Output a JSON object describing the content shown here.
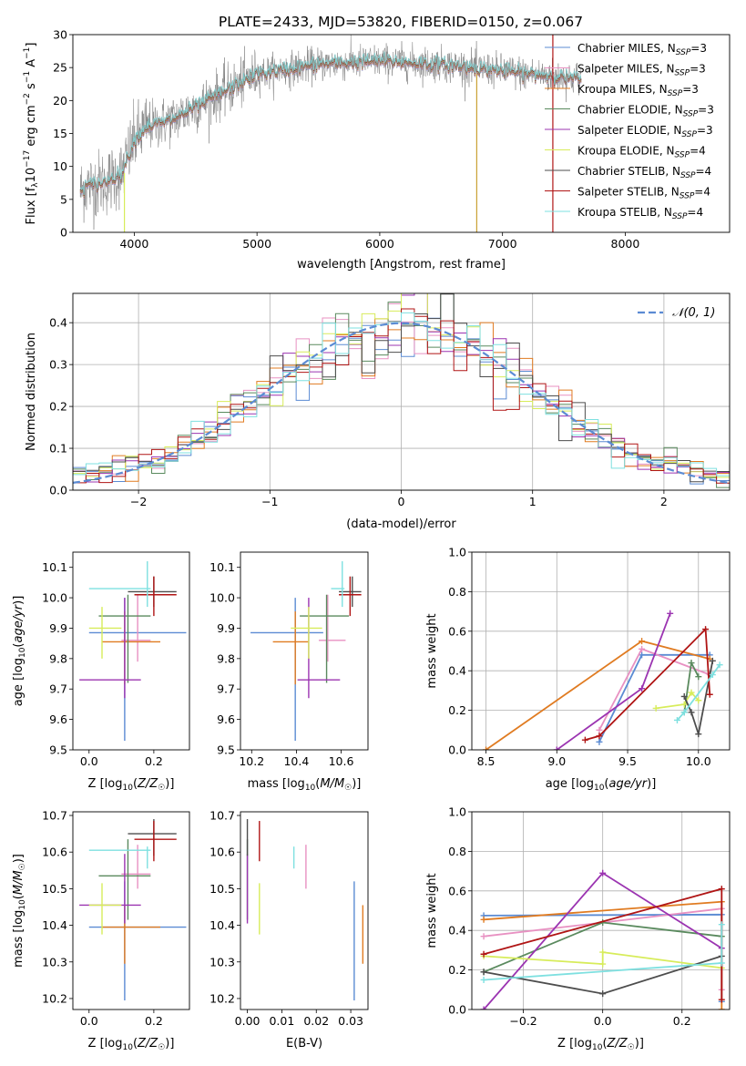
{
  "figure": {
    "title": "PLATE=2433, MJD=53820, FIBERID=0150, z=0.067"
  },
  "chart_data": [
    {
      "id": "spectrum",
      "type": "line",
      "xlabel": "wavelength [Angstrom, rest frame]",
      "ylabel": "Flux [f_λ10^-17 erg cm^-2 s^-1 A^-1]",
      "xlim": [
        3500,
        8850
      ],
      "ylim": [
        0,
        30
      ],
      "xticks": [
        4000,
        5000,
        6000,
        7000,
        8000
      ],
      "yticks": [
        0,
        5,
        10,
        15,
        20,
        25,
        30
      ],
      "grid": false,
      "legend_position": "right",
      "data_color": "#808080",
      "continuum_knots_x": [
        3500,
        3600,
        3750,
        3900,
        4000,
        4100,
        4300,
        4600,
        5000,
        5500,
        6000,
        6500,
        7000,
        7500,
        8000,
        8500,
        8850
      ],
      "continuum_knots_y": [
        5,
        7,
        7.5,
        9,
        14,
        16,
        17,
        20,
        24,
        25.5,
        26,
        25.5,
        24.5,
        23.5,
        22.5,
        22,
        21.5
      ],
      "drop_lines_x": [
        3920,
        6790,
        7410
      ],
      "series": [
        {
          "name": "Chabrier MILES, N_SSP=3",
          "color": "#5b8bd3"
        },
        {
          "name": "Salpeter MILES, N_SSP=3",
          "color": "#e891c2"
        },
        {
          "name": "Kroupa MILES, N_SSP=3",
          "color": "#e07b21"
        },
        {
          "name": "Chabrier ELODIE, N_SSP=3",
          "color": "#5a8a5e"
        },
        {
          "name": "Salpeter ELODIE, N_SSP=3",
          "color": "#9b34b1"
        },
        {
          "name": "Kroupa ELODIE, N_SSP=4",
          "color": "#d7ec5a"
        },
        {
          "name": "Chabrier STELIB, N_SSP=4",
          "color": "#4d4d4d"
        },
        {
          "name": "Salpeter STELIB, N_SSP=4",
          "color": "#b01515"
        },
        {
          "name": "Kroupa STELIB, N_SSP=4",
          "color": "#7ee0e0"
        }
      ]
    },
    {
      "id": "residuals",
      "type": "histogram",
      "xlabel": "(data-model)/error",
      "ylabel": "Normed distribution",
      "xlim": [
        -2.5,
        2.5
      ],
      "ylim": [
        0,
        0.47
      ],
      "xticks": [
        -2,
        -1,
        0,
        1,
        2
      ],
      "yticks": [
        0.0,
        0.1,
        0.2,
        0.3,
        0.4
      ],
      "grid": true,
      "legend_position": "upper right",
      "bin_width": 0.1,
      "reference_curve": {
        "name": "𝒩(0, 1)",
        "color": "#5b8bd3",
        "style": "dashed"
      }
    },
    {
      "id": "age_vs_Z",
      "type": "errorbar",
      "xlabel": "Z [log10(Z/Z☉)]",
      "ylabel": "age [log10(age/yr)]",
      "xlim": [
        -0.05,
        0.31
      ],
      "ylim": [
        9.5,
        10.15
      ],
      "xticks": [
        0.0,
        0.2
      ],
      "yticks": [
        9.5,
        9.6,
        9.7,
        9.8,
        9.9,
        10.0,
        10.1
      ],
      "points": [
        {
          "x": 0.11,
          "y": 9.885,
          "xerr": [
            0.11,
            0.19
          ],
          "yerr": [
            0.355,
            0.115
          ],
          "color": "#5b8bd3"
        },
        {
          "x": 0.15,
          "y": 9.86,
          "xerr": [
            0.05,
            0.04
          ],
          "yerr": [
            0.07,
            0.15
          ],
          "color": "#e891c2"
        },
        {
          "x": 0.11,
          "y": 9.855,
          "xerr": [
            0.07,
            0.11
          ],
          "yerr": [
            0.14,
            0.1
          ],
          "color": "#e07b21"
        },
        {
          "x": 0.12,
          "y": 9.94,
          "xerr": [
            0.09,
            0.07
          ],
          "yerr": [
            0.22,
            0.07
          ],
          "color": "#5a8a5e"
        },
        {
          "x": 0.11,
          "y": 9.73,
          "xerr": [
            0.14,
            0.05
          ],
          "yerr": [
            0.06,
            0.27
          ],
          "color": "#9b34b1"
        },
        {
          "x": 0.04,
          "y": 9.9,
          "xerr": [
            0.04,
            0.06
          ],
          "yerr": [
            0.1,
            0.07
          ],
          "color": "#d7ec5a"
        },
        {
          "x": 0.2,
          "y": 10.02,
          "xerr": [
            0.08,
            0.07
          ],
          "yerr": [
            0.05,
            0.05
          ],
          "color": "#4d4d4d"
        },
        {
          "x": 0.2,
          "y": 10.01,
          "xerr": [
            0.06,
            0.07
          ],
          "yerr": [
            0.07,
            0.06
          ],
          "color": "#b01515"
        },
        {
          "x": 0.18,
          "y": 10.03,
          "xerr": [
            0.18,
            0.01
          ],
          "yerr": [
            0.06,
            0.09
          ],
          "color": "#7ee0e0"
        }
      ]
    },
    {
      "id": "age_vs_mass",
      "type": "errorbar",
      "xlabel": "mass [log10(M/M☉)]",
      "ylabel": "",
      "xlim": [
        10.15,
        10.72
      ],
      "ylim": [
        9.5,
        10.15
      ],
      "xticks": [
        10.2,
        10.4,
        10.6
      ],
      "yticks": [
        9.5,
        9.6,
        9.7,
        9.8,
        9.9,
        10.0,
        10.1
      ],
      "points": [
        {
          "x": 10.395,
          "y": 9.885,
          "xerr": [
            0.2,
            0.125
          ],
          "yerr": [
            0.355,
            0.115
          ],
          "color": "#5b8bd3"
        },
        {
          "x": 10.54,
          "y": 9.86,
          "xerr": [
            0.04,
            0.08
          ],
          "yerr": [
            0.07,
            0.15
          ],
          "color": "#e891c2"
        },
        {
          "x": 10.395,
          "y": 9.855,
          "xerr": [
            0.1,
            0.06
          ],
          "yerr": [
            0.14,
            0.1
          ],
          "color": "#e07b21"
        },
        {
          "x": 10.535,
          "y": 9.94,
          "xerr": [
            0.12,
            0.1
          ],
          "yerr": [
            0.22,
            0.07
          ],
          "color": "#5a8a5e"
        },
        {
          "x": 10.455,
          "y": 9.73,
          "xerr": [
            0.05,
            0.14
          ],
          "yerr": [
            0.06,
            0.27
          ],
          "color": "#9b34b1"
        },
        {
          "x": 10.455,
          "y": 9.9,
          "xerr": [
            0.08,
            0.06
          ],
          "yerr": [
            0.1,
            0.07
          ],
          "color": "#d7ec5a"
        },
        {
          "x": 10.65,
          "y": 10.02,
          "xerr": [
            0.06,
            0.04
          ],
          "yerr": [
            0.05,
            0.05
          ],
          "color": "#4d4d4d"
        },
        {
          "x": 10.64,
          "y": 10.01,
          "xerr": [
            0.05,
            0.05
          ],
          "yerr": [
            0.07,
            0.06
          ],
          "color": "#b01515"
        },
        {
          "x": 10.605,
          "y": 10.03,
          "xerr": [
            0.05,
            0.01
          ],
          "yerr": [
            0.06,
            0.09
          ],
          "color": "#7ee0e0"
        }
      ]
    },
    {
      "id": "weight_vs_age",
      "type": "line",
      "xlabel": "age [log10(age/yr)]",
      "ylabel": "mass weight",
      "xlim": [
        8.4,
        10.22
      ],
      "ylim": [
        0.0,
        1.0
      ],
      "xticks": [
        8.5,
        9.0,
        9.5,
        10.0
      ],
      "yticks": [
        0.0,
        0.2,
        0.4,
        0.6,
        0.8,
        1.0
      ],
      "grid": true,
      "series": [
        {
          "color": "#5b8bd3",
          "x": [
            9.3,
            9.6,
            10.08
          ],
          "y": [
            0.04,
            0.48,
            0.48
          ]
        },
        {
          "color": "#e891c2",
          "x": [
            9.3,
            9.6,
            10.08
          ],
          "y": [
            0.1,
            0.51,
            0.38
          ]
        },
        {
          "color": "#e07b21",
          "x": [
            8.5,
            9.6,
            10.08
          ],
          "y": [
            0.0,
            0.55,
            0.46
          ]
        },
        {
          "color": "#5a8a5e",
          "x": [
            9.9,
            9.95,
            10.0
          ],
          "y": [
            0.19,
            0.44,
            0.37
          ]
        },
        {
          "color": "#9b34b1",
          "x": [
            9.0,
            9.6,
            9.8
          ],
          "y": [
            0.0,
            0.31,
            0.69
          ]
        },
        {
          "color": "#d7ec5a",
          "x": [
            9.7,
            9.9,
            9.95,
            10.0
          ],
          "y": [
            0.21,
            0.23,
            0.29,
            0.25
          ]
        },
        {
          "color": "#4d4d4d",
          "x": [
            9.9,
            9.95,
            10.0,
            10.1
          ],
          "y": [
            0.27,
            0.19,
            0.08,
            0.45
          ]
        },
        {
          "color": "#b01515",
          "x": [
            9.2,
            9.3,
            10.05,
            10.08
          ],
          "y": [
            0.05,
            0.07,
            0.61,
            0.28
          ]
        },
        {
          "color": "#7ee0e0",
          "x": [
            9.85,
            9.9,
            10.1,
            10.15
          ],
          "y": [
            0.15,
            0.19,
            0.38,
            0.43
          ]
        }
      ]
    },
    {
      "id": "mass_vs_Z",
      "type": "errorbar",
      "xlabel": "Z [log10(Z/Z☉)]",
      "ylabel": "mass [log10(M/M☉)]",
      "xlim": [
        -0.05,
        0.31
      ],
      "ylim": [
        10.17,
        10.71
      ],
      "xticks": [
        0.0,
        0.2
      ],
      "yticks": [
        10.2,
        10.3,
        10.4,
        10.5,
        10.6,
        10.7
      ],
      "points": [
        {
          "x": 0.11,
          "y": 10.395,
          "xerr": [
            0.11,
            0.19
          ],
          "yerr": [
            0.2,
            0.125
          ],
          "color": "#5b8bd3"
        },
        {
          "x": 0.15,
          "y": 10.54,
          "xerr": [
            0.05,
            0.04
          ],
          "yerr": [
            0.04,
            0.08
          ],
          "color": "#e891c2"
        },
        {
          "x": 0.11,
          "y": 10.395,
          "xerr": [
            0.07,
            0.11
          ],
          "yerr": [
            0.1,
            0.06
          ],
          "color": "#e07b21"
        },
        {
          "x": 0.12,
          "y": 10.535,
          "xerr": [
            0.09,
            0.07
          ],
          "yerr": [
            0.12,
            0.1
          ],
          "color": "#5a8a5e"
        },
        {
          "x": 0.11,
          "y": 10.455,
          "xerr": [
            0.14,
            0.05
          ],
          "yerr": [
            0.05,
            0.14
          ],
          "color": "#9b34b1"
        },
        {
          "x": 0.04,
          "y": 10.455,
          "xerr": [
            0.04,
            0.06
          ],
          "yerr": [
            0.08,
            0.06
          ],
          "color": "#d7ec5a"
        },
        {
          "x": 0.2,
          "y": 10.65,
          "xerr": [
            0.08,
            0.07
          ],
          "yerr": [
            0.06,
            0.04
          ],
          "color": "#4d4d4d"
        },
        {
          "x": 0.2,
          "y": 10.635,
          "xerr": [
            0.06,
            0.07
          ],
          "yerr": [
            0.06,
            0.05
          ],
          "color": "#b01515"
        },
        {
          "x": 0.18,
          "y": 10.605,
          "xerr": [
            0.18,
            0.01
          ],
          "yerr": [
            0.05,
            0.01
          ],
          "color": "#7ee0e0"
        }
      ]
    },
    {
      "id": "mass_vs_EBV",
      "type": "errorbar",
      "xlabel": "E(B-V)",
      "ylabel": "",
      "xlim": [
        -0.002,
        0.035
      ],
      "ylim": [
        10.17,
        10.71
      ],
      "xticks": [
        0.0,
        0.01,
        0.02,
        0.03
      ],
      "yticks": [
        10.2,
        10.3,
        10.4,
        10.5,
        10.6,
        10.7
      ],
      "points": [
        {
          "x": 0.031,
          "y": 10.395,
          "yerr": [
            0.2,
            0.125
          ],
          "color": "#5b8bd3"
        },
        {
          "x": 0.017,
          "y": 10.54,
          "yerr": [
            0.04,
            0.08
          ],
          "color": "#e891c2"
        },
        {
          "x": 0.0335,
          "y": 10.395,
          "yerr": [
            0.1,
            0.06
          ],
          "color": "#e07b21"
        },
        {
          "x": 0.0,
          "y": 10.535,
          "yerr": [
            0.12,
            0.1
          ],
          "color": "#5a8a5e"
        },
        {
          "x": 0.0,
          "y": 10.455,
          "yerr": [
            0.05,
            0.14
          ],
          "color": "#9b34b1"
        },
        {
          "x": 0.0035,
          "y": 10.455,
          "yerr": [
            0.08,
            0.06
          ],
          "color": "#d7ec5a"
        },
        {
          "x": 0.0,
          "y": 10.65,
          "yerr": [
            0.06,
            0.04
          ],
          "color": "#4d4d4d"
        },
        {
          "x": 0.0035,
          "y": 10.635,
          "yerr": [
            0.06,
            0.05
          ],
          "color": "#b01515"
        },
        {
          "x": 0.0135,
          "y": 10.605,
          "yerr": [
            0.05,
            0.01
          ],
          "color": "#7ee0e0"
        }
      ]
    },
    {
      "id": "weight_vs_Z",
      "type": "line",
      "xlabel": "Z [log10(Z/Z☉)]",
      "ylabel": "mass weight",
      "xlim": [
        -0.33,
        0.32
      ],
      "ylim": [
        0.0,
        1.0
      ],
      "xticks": [
        -0.2,
        0.0,
        0.2
      ],
      "yticks": [
        0.0,
        0.2,
        0.4,
        0.6,
        0.8,
        1.0
      ],
      "grid": true,
      "series": [
        {
          "color": "#5b8bd3",
          "x": [
            -0.3,
            0.3,
            0.3
          ],
          "y": [
            0.475,
            0.48,
            0.04
          ]
        },
        {
          "color": "#e891c2",
          "x": [
            -0.3,
            0.3,
            0.3
          ],
          "y": [
            0.37,
            0.51,
            0.1
          ]
        },
        {
          "color": "#e07b21",
          "x": [
            -0.3,
            0.3,
            0.3
          ],
          "y": [
            0.455,
            0.545,
            0.0
          ]
        },
        {
          "color": "#5a8a5e",
          "x": [
            -0.3,
            0.0,
            0.3
          ],
          "y": [
            0.19,
            0.44,
            0.37
          ]
        },
        {
          "color": "#9b34b1",
          "x": [
            -0.3,
            0.0,
            0.3
          ],
          "y": [
            0.0,
            0.69,
            0.31
          ]
        },
        {
          "color": "#d7ec5a",
          "x": [
            -0.3,
            0.0,
            0.0,
            0.3
          ],
          "y": [
            0.27,
            0.23,
            0.29,
            0.21
          ]
        },
        {
          "color": "#4d4d4d",
          "x": [
            -0.3,
            0.0,
            0.3
          ],
          "y": [
            0.19,
            0.08,
            0.27
          ]
        },
        {
          "color": "#b01515",
          "x": [
            -0.3,
            0.3,
            0.3
          ],
          "y": [
            0.28,
            0.61,
            0.05
          ]
        },
        {
          "color": "#7ee0e0",
          "x": [
            -0.3,
            0.3,
            0.3
          ],
          "y": [
            0.15,
            0.235,
            0.43
          ]
        }
      ]
    }
  ]
}
